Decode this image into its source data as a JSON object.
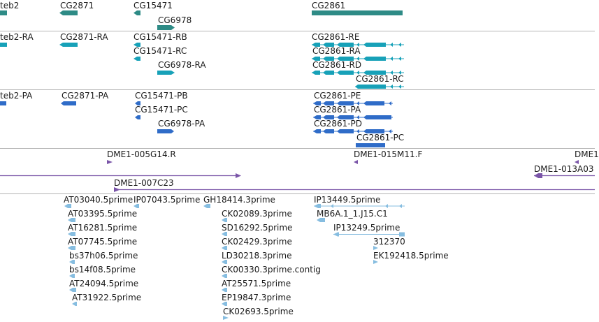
{
  "colors": {
    "gene": "#2e8b86",
    "transcript_ra": "#17a1b8",
    "protein": "#2f6cc8",
    "clone": "#7a55a8",
    "est": "#86bde0",
    "separator": "#b4b4b4"
  },
  "tracks": {
    "genes": [
      {
        "label": "teb2"
      },
      {
        "label": "CG2871"
      },
      {
        "label": "CG15471"
      },
      {
        "label": "CG6978"
      },
      {
        "label": "CG2861"
      }
    ],
    "transcripts": [
      {
        "label": "teb2-RA"
      },
      {
        "label": "CG2871-RA"
      },
      {
        "label": "CG15471-RB"
      },
      {
        "label": "CG15471-RC"
      },
      {
        "label": "CG6978-RA"
      },
      {
        "label": "CG2861-RE"
      },
      {
        "label": "CG2861-RA"
      },
      {
        "label": "CG2861-RD"
      },
      {
        "label": "CG2861-RC"
      }
    ],
    "proteins": [
      {
        "label": "teb2-PA"
      },
      {
        "label": "CG2871-PA"
      },
      {
        "label": "CG15471-PB"
      },
      {
        "label": "CG15471-PC"
      },
      {
        "label": "CG6978-PA"
      },
      {
        "label": "CG2861-PE"
      },
      {
        "label": "CG2861-PA"
      },
      {
        "label": "CG2861-PD"
      },
      {
        "label": "CG2861-PC"
      }
    ],
    "clones": [
      {
        "label": "DME1-005G14.R"
      },
      {
        "label": "DME1-015M11.F"
      },
      {
        "label": "DME1"
      },
      {
        "label": "DME1-013A03"
      },
      {
        "label": "DME1-007C23"
      }
    ],
    "ests": [
      {
        "label": "AT03040.5prime"
      },
      {
        "label": "IP07043.5prime"
      },
      {
        "label": "GH18414.3prime"
      },
      {
        "label": "IP13449.5prime"
      },
      {
        "label": "AT03395.5prime"
      },
      {
        "label": "CK02089.3prime"
      },
      {
        "label": "MB6A.1_1.J15.C1"
      },
      {
        "label": "AT16281.5prime"
      },
      {
        "label": "SD16292.5prime"
      },
      {
        "label": "IP13249.5prime"
      },
      {
        "label": "AT07745.5prime"
      },
      {
        "label": "CK02429.3prime"
      },
      {
        "label": "312370"
      },
      {
        "label": "bs37h06.5prime"
      },
      {
        "label": "LD30218.3prime"
      },
      {
        "label": "EK192418.5prime"
      },
      {
        "label": "bs14f08.5prime"
      },
      {
        "label": "CK00330.3prime.contig"
      },
      {
        "label": "AT24094.5prime"
      },
      {
        "label": "AT25571.5prime"
      },
      {
        "label": "AT31922.5prime"
      },
      {
        "label": "EP19847.3prime"
      },
      {
        "label": "CK02693.5prime"
      }
    ]
  }
}
